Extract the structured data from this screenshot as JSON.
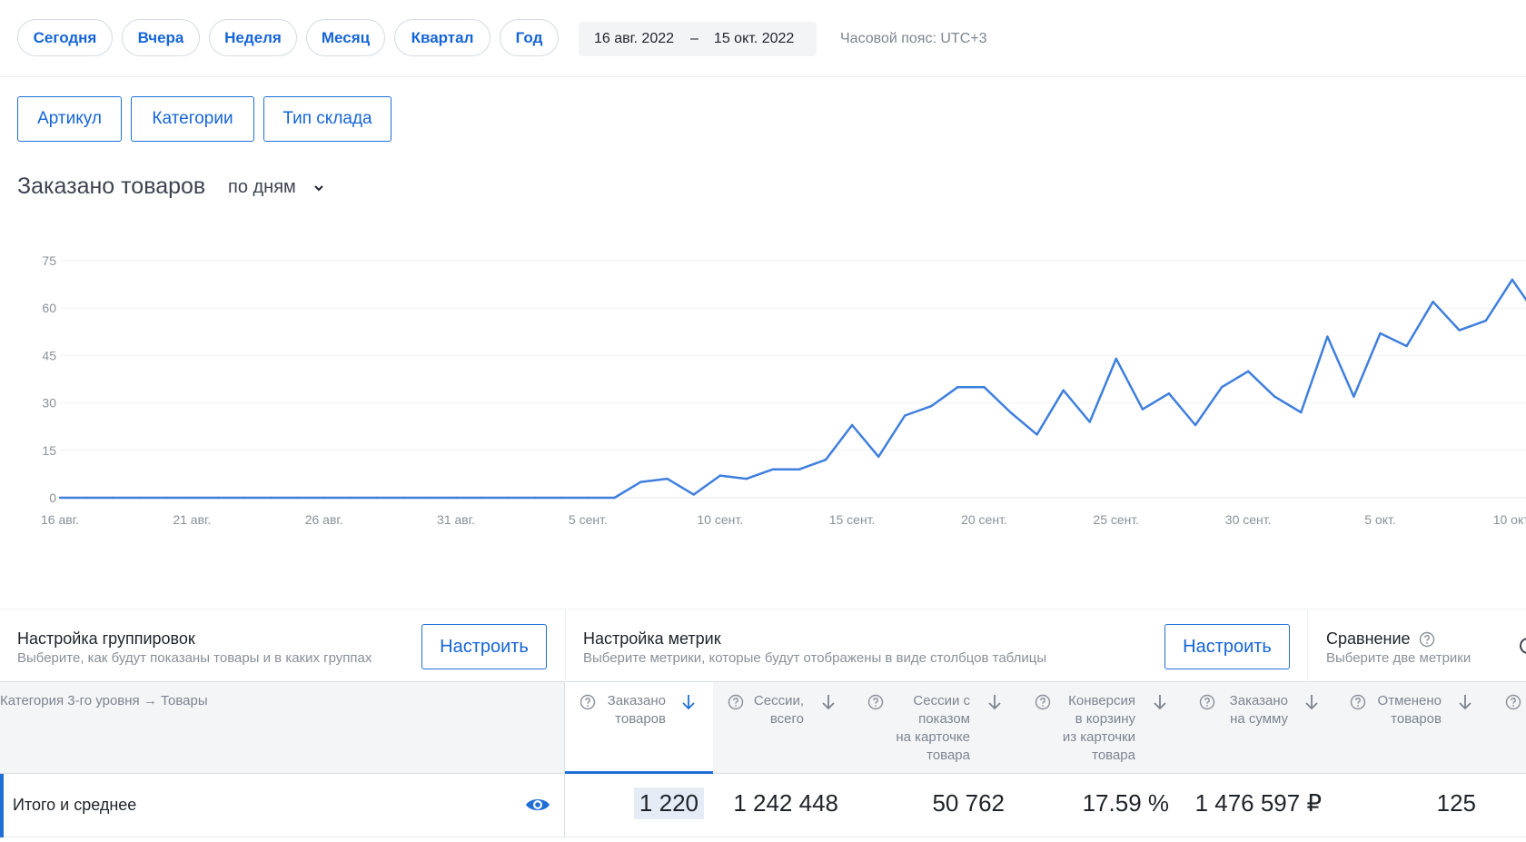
{
  "periods": [
    "Сегодня",
    "Вчера",
    "Неделя",
    "Месяц",
    "Квартал",
    "Год"
  ],
  "date_range": {
    "from": "16 авг. 2022",
    "separator": "–",
    "to": "15 окт. 2022"
  },
  "timezone": "Часовой пояс: UTC+3",
  "filters": [
    "Артикул",
    "Категории",
    "Тип склада"
  ],
  "chart_header": {
    "title": "Заказано товаров",
    "granularity": "по дням"
  },
  "chart_data": {
    "type": "line",
    "title": "Заказано товаров",
    "xlabel": "",
    "ylabel": "",
    "ylim": [
      0,
      75
    ],
    "yticks": [
      0,
      15,
      30,
      45,
      60,
      75
    ],
    "xtick_labels": [
      "16 авг.",
      "21 авг.",
      "26 авг.",
      "31 авг.",
      "5 сент.",
      "10 сент.",
      "15 сент.",
      "20 сент.",
      "25 сент.",
      "30 сент.",
      "5 окт.",
      "10 окт."
    ],
    "grid": true,
    "line_color": "#3f7fde",
    "values": [
      0,
      0,
      0,
      0,
      0,
      0,
      0,
      0,
      0,
      0,
      0,
      0,
      0,
      0,
      0,
      0,
      0,
      0,
      0,
      0,
      0,
      0,
      5,
      6,
      1,
      7,
      6,
      9,
      9,
      12,
      23,
      13,
      26,
      29,
      35,
      35,
      27,
      20,
      34,
      24,
      44,
      28,
      33,
      23,
      35,
      40,
      32,
      27,
      51,
      32,
      52,
      48,
      62,
      53,
      56,
      69,
      57
    ]
  },
  "grouping": {
    "title": "Настройка группировок",
    "description": "Выберите, как будут показаны товары и в каких группах",
    "button": "Настроить"
  },
  "metrics": {
    "title": "Настройка метрик",
    "description": "Выберите метрики, которые будут отображены в виде столбцов таблицы",
    "button": "Настроить"
  },
  "comparison": {
    "title": "Сравнение",
    "description": "Выберите две метрики"
  },
  "table": {
    "group_header": "Категория 3-го уровня → Товары",
    "columns": [
      {
        "lines": [
          "Заказано",
          "товаров"
        ]
      },
      {
        "lines": [
          "Сессии,",
          "всего"
        ]
      },
      {
        "lines": [
          "Сессии с",
          "показом",
          "на карточке",
          "товара"
        ]
      },
      {
        "lines": [
          "Конверсия",
          "в корзину",
          "из карточки",
          "товара"
        ]
      },
      {
        "lines": [
          "Заказано",
          "на сумму"
        ]
      },
      {
        "lines": [
          "Отменено",
          "товаров"
        ]
      }
    ],
    "total_row": {
      "label": "Итого и среднее",
      "values": [
        "1 220",
        "1 242 448",
        "50 762",
        "17.59 %",
        "1 476 597 ₽",
        "125"
      ]
    }
  },
  "colors": {
    "accent": "#1f6fd6",
    "link": "#1565d8",
    "chart_line": "#3f7fde"
  },
  "icons": {
    "help": "question-circle-icon",
    "sort": "arrow-down-icon",
    "visibility": "eye-icon",
    "dropdown": "chevron-down-icon"
  }
}
